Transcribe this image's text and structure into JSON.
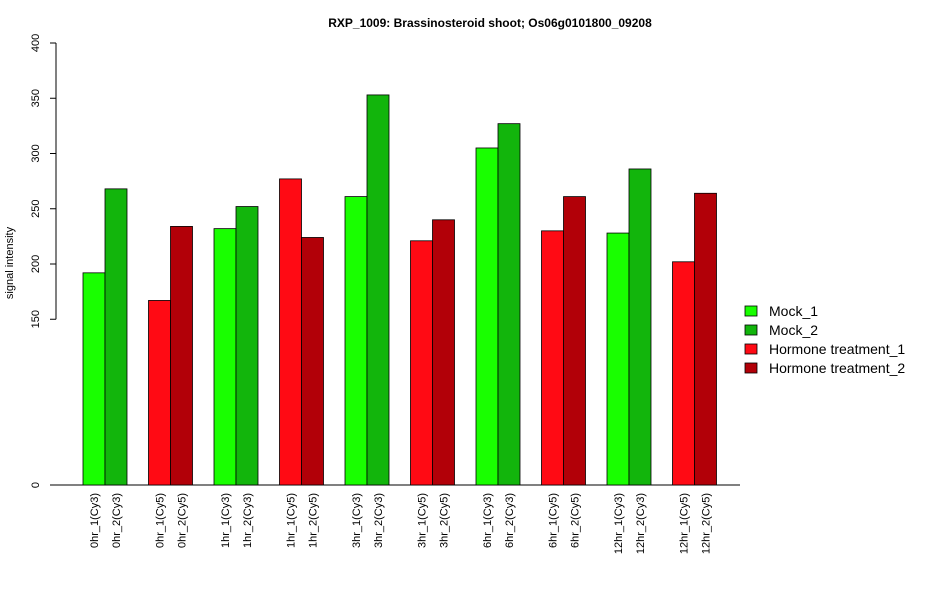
{
  "chart_data": {
    "type": "bar",
    "title": "RXP_1009: Brassinosteroid shoot; Os06g0101800_09208",
    "xlabel": "",
    "ylabel": "signal intensity",
    "ylim": [
      0,
      400
    ],
    "yticks": [
      "0",
      "150",
      "200",
      "250",
      "300",
      "350",
      "400"
    ],
    "grid": false,
    "legend_position": "right",
    "colors": {
      "Mock_1": "#19FF00",
      "Mock_2": "#12B50C",
      "Hormone treatment_1": "#FF0A14",
      "Hormone treatment_2": "#B20008"
    },
    "legend": [
      "Mock_1",
      "Mock_2",
      "Hormone treatment_1",
      "Hormone treatment_2"
    ],
    "bars": [
      {
        "label": "0hr_1(Cy3)",
        "value": 192,
        "series": "Mock_1"
      },
      {
        "label": "0hr_2(Cy3)",
        "value": 268,
        "series": "Mock_2"
      },
      {
        "label": "0hr_1(Cy5)",
        "value": 167,
        "series": "Hormone treatment_1"
      },
      {
        "label": "0hr_2(Cy5)",
        "value": 234,
        "series": "Hormone treatment_2"
      },
      {
        "label": "1hr_1(Cy3)",
        "value": 232,
        "series": "Mock_1"
      },
      {
        "label": "1hr_2(Cy3)",
        "value": 252,
        "series": "Mock_2"
      },
      {
        "label": "1hr_1(Cy5)",
        "value": 277,
        "series": "Hormone treatment_1"
      },
      {
        "label": "1hr_2(Cy5)",
        "value": 224,
        "series": "Hormone treatment_2"
      },
      {
        "label": "3hr_1(Cy3)",
        "value": 261,
        "series": "Mock_1"
      },
      {
        "label": "3hr_2(Cy3)",
        "value": 353,
        "series": "Mock_2"
      },
      {
        "label": "3hr_1(Cy5)",
        "value": 221,
        "series": "Hormone treatment_1"
      },
      {
        "label": "3hr_2(Cy5)",
        "value": 240,
        "series": "Hormone treatment_2"
      },
      {
        "label": "6hr_1(Cy3)",
        "value": 305,
        "series": "Mock_1"
      },
      {
        "label": "6hr_2(Cy3)",
        "value": 327,
        "series": "Mock_2"
      },
      {
        "label": "6hr_1(Cy5)",
        "value": 230,
        "series": "Hormone treatment_1"
      },
      {
        "label": "6hr_2(Cy5)",
        "value": 261,
        "series": "Hormone treatment_2"
      },
      {
        "label": "12hr_1(Cy3)",
        "value": 228,
        "series": "Mock_1"
      },
      {
        "label": "12hr_2(Cy3)",
        "value": 286,
        "series": "Mock_2"
      },
      {
        "label": "12hr_1(Cy5)",
        "value": 202,
        "series": "Hormone treatment_1"
      },
      {
        "label": "12hr_2(Cy5)",
        "value": 264,
        "series": "Hormone treatment_2"
      }
    ]
  }
}
